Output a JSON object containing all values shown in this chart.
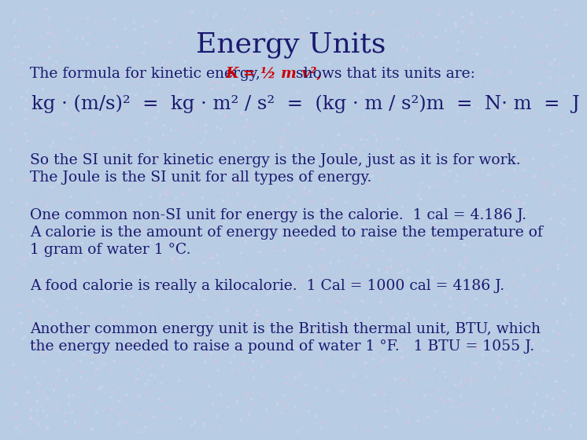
{
  "title": "Energy Units",
  "title_fontsize": 26,
  "title_color": "#1a1a6e",
  "bg_color": "#b8cce4",
  "text_color": "#1a1a6e",
  "formula_color": "#cc0000",
  "body_fontsize": 13.5,
  "formula_line_fontsize": 17.5,
  "line1_pre": "The formula for kinetic energy, ",
  "line1_formula": "K = ½ m v²,",
  "line1_post": " shows that its units are:",
  "formula_display": "kg · (m/s)²  =  kg · m² / s²  =  (kg · m / s²)m  =  N· m  =  J",
  "para2_line1": "So the SI unit for kinetic energy is the Joule, just as it is for work.",
  "para2_line2": "The Joule is the SI unit for all types of energy.",
  "para3_line1": "One common non-SI unit for energy is the calorie.  1 cal = 4.186 J.",
  "para3_line2": "A calorie is the amount of energy needed to raise the temperature of",
  "para3_line3": "1 gram of water 1 °C.",
  "para4_line1": "A food calorie is really a kilocalorie.  1 Cal = 1000 cal = 4186 J.",
  "para5_line1": "Another common energy unit is the British thermal unit, BTU, which",
  "para5_line2": "the energy needed to raise a pound of water 1 °F.   1 BTU = 1055 J.",
  "noise_colors": [
    "#d0ddf5",
    "#c0ccee",
    "#e0c8d8",
    "#b8c8e8",
    "#d8c8e0"
  ]
}
